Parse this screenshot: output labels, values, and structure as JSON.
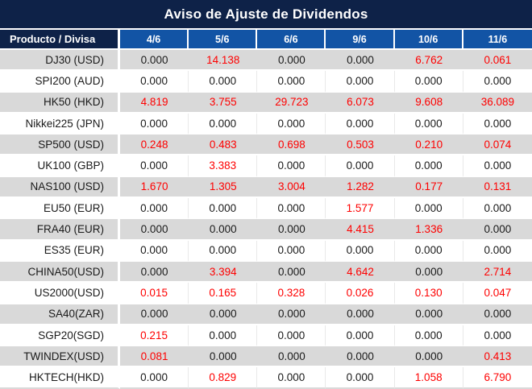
{
  "title": "Aviso de Ajuste de Dividendos",
  "table": {
    "product_header": "Producto / Divisa",
    "date_headers": [
      "4/6",
      "5/6",
      "6/6",
      "9/6",
      "10/6",
      "11/6"
    ],
    "rows": [
      {
        "product": "DJ30 (USD)",
        "values": [
          "0.000",
          "14.138",
          "0.000",
          "0.000",
          "6.762",
          "0.061"
        ]
      },
      {
        "product": "SPI200 (AUD)",
        "values": [
          "0.000",
          "0.000",
          "0.000",
          "0.000",
          "0.000",
          "0.000"
        ]
      },
      {
        "product": "HK50 (HKD)",
        "values": [
          "4.819",
          "3.755",
          "29.723",
          "6.073",
          "9.608",
          "36.089"
        ]
      },
      {
        "product": "Nikkei225 (JPN)",
        "values": [
          "0.000",
          "0.000",
          "0.000",
          "0.000",
          "0.000",
          "0.000"
        ]
      },
      {
        "product": "SP500 (USD)",
        "values": [
          "0.248",
          "0.483",
          "0.698",
          "0.503",
          "0.210",
          "0.074"
        ]
      },
      {
        "product": "UK100 (GBP)",
        "values": [
          "0.000",
          "3.383",
          "0.000",
          "0.000",
          "0.000",
          "0.000"
        ]
      },
      {
        "product": "NAS100 (USD)",
        "values": [
          "1.670",
          "1.305",
          "3.004",
          "1.282",
          "0.177",
          "0.131"
        ]
      },
      {
        "product": "EU50 (EUR)",
        "values": [
          "0.000",
          "0.000",
          "0.000",
          "1.577",
          "0.000",
          "0.000"
        ]
      },
      {
        "product": "FRA40 (EUR)",
        "values": [
          "0.000",
          "0.000",
          "0.000",
          "4.415",
          "1.336",
          "0.000"
        ]
      },
      {
        "product": "ES35 (EUR)",
        "values": [
          "0.000",
          "0.000",
          "0.000",
          "0.000",
          "0.000",
          "0.000"
        ]
      },
      {
        "product": "CHINA50(USD)",
        "values": [
          "0.000",
          "3.394",
          "0.000",
          "4.642",
          "0.000",
          "2.714"
        ]
      },
      {
        "product": "US2000(USD)",
        "values": [
          "0.015",
          "0.165",
          "0.328",
          "0.026",
          "0.130",
          "0.047"
        ]
      },
      {
        "product": "SA40(ZAR)",
        "values": [
          "0.000",
          "0.000",
          "0.000",
          "0.000",
          "0.000",
          "0.000"
        ]
      },
      {
        "product": "SGP20(SGD)",
        "values": [
          "0.215",
          "0.000",
          "0.000",
          "0.000",
          "0.000",
          "0.000"
        ]
      },
      {
        "product": "TWINDEX(USD)",
        "values": [
          "0.081",
          "0.000",
          "0.000",
          "0.000",
          "0.000",
          "0.413"
        ]
      },
      {
        "product": "HKTECH(HKD)",
        "values": [
          "0.000",
          "0.829",
          "0.000",
          "0.000",
          "1.058",
          "6.790"
        ]
      }
    ]
  },
  "colors": {
    "title_bg": "#0e2248",
    "date_header_bg": "#1254a5",
    "stripe_bg": "#d9d9d9",
    "value_nonzero": "#fe0000",
    "value_zero": "#1a1a1a"
  }
}
